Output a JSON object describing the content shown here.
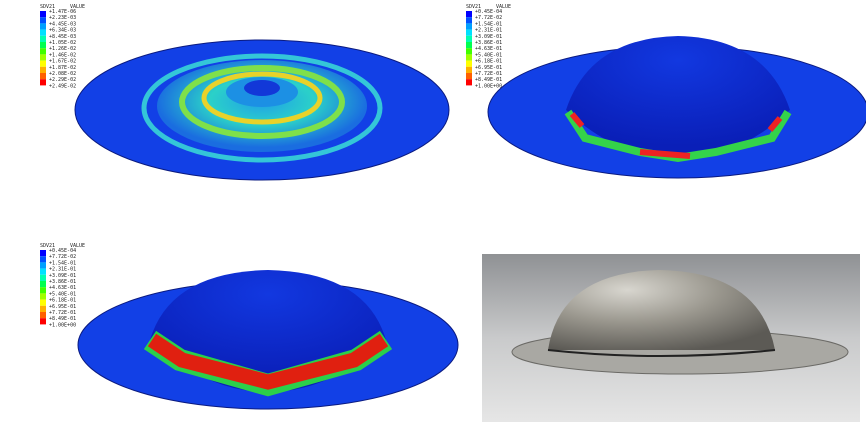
{
  "panels": [
    {
      "legend": {
        "variable": "SDV21",
        "header": "VALUE",
        "values": [
          "+1.47E-06",
          "+2.23E-03",
          "+4.45E-03",
          "+6.34E-03",
          "+8.45E-03",
          "+1.05E-02",
          "+1.26E-02",
          "+1.46E-02",
          "+1.67E-02",
          "+1.87E-02",
          "+2.08E-02",
          "+2.29E-02",
          "+2.49E-02"
        ]
      }
    },
    {
      "legend": {
        "variable": "SDV21",
        "header": "VALUE",
        "values": [
          "+0.45E-04",
          "+7.72E-02",
          "+1.54E-01",
          "+2.31E-01",
          "+3.09E-01",
          "+3.86E-01",
          "+4.63E-01",
          "+5.40E-01",
          "+6.18E-01",
          "+6.95E-01",
          "+7.72E-01",
          "+8.49E-01",
          "+1.00E+00"
        ]
      }
    },
    {
      "legend": {
        "variable": "SDV21",
        "header": "VALUE",
        "values": [
          "+0.45E-04",
          "+7.72E-02",
          "+1.54E-01",
          "+2.31E-01",
          "+3.09E-01",
          "+3.86E-01",
          "+4.63E-01",
          "+5.40E-01",
          "+6.18E-01",
          "+6.95E-01",
          "+7.72E-01",
          "+8.49E-01",
          "+1.00E+00"
        ]
      }
    }
  ]
}
